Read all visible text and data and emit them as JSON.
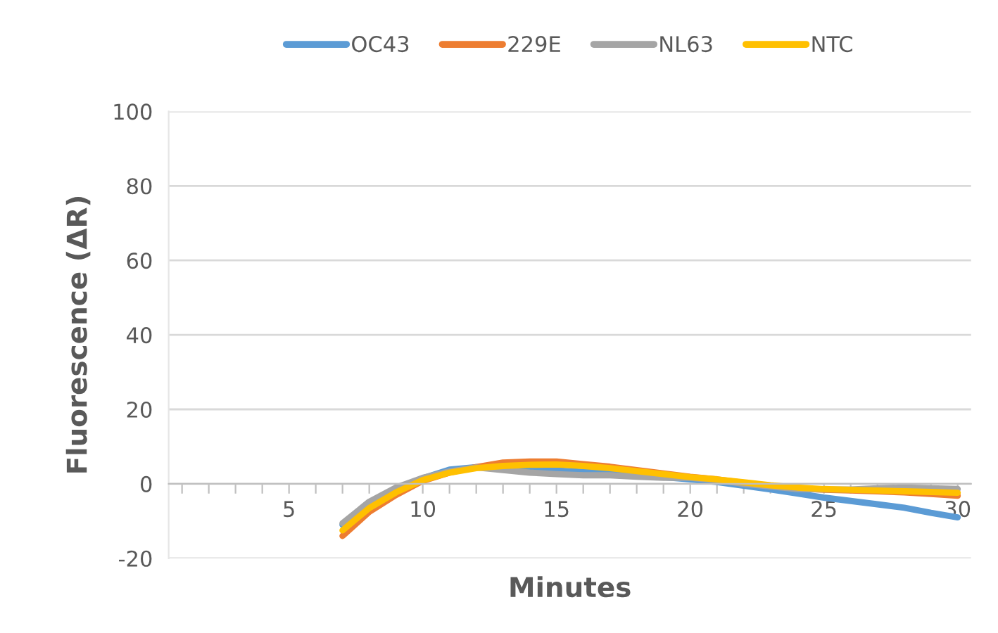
{
  "chart_data": {
    "type": "line",
    "xlabel": "Minutes",
    "ylabel": "Fluorescence (ΔR)",
    "x": [
      7,
      8,
      9,
      10,
      11,
      12,
      13,
      14,
      15,
      16,
      17,
      18,
      19,
      20,
      21,
      22,
      23,
      24,
      25,
      26,
      27,
      28,
      29,
      30
    ],
    "series": [
      {
        "name": "OC43",
        "color": "#5b9bd5",
        "values": [
          -11,
          -5,
          -1.5,
          1.5,
          3.8,
          4.5,
          4.2,
          3.8,
          3.6,
          3.2,
          3,
          2.3,
          1.8,
          1.2,
          0.5,
          -0.5,
          -1.5,
          -2.6,
          -3.7,
          -4.6,
          -5.5,
          -6.4,
          -7.8,
          -9
        ]
      },
      {
        "name": "229E",
        "color": "#ed7d31",
        "values": [
          -14,
          -7.5,
          -3,
          0.8,
          3,
          4.5,
          5.7,
          6,
          6,
          5.3,
          4.6,
          3.7,
          2.8,
          1.9,
          1.2,
          0.3,
          -0.5,
          -1.2,
          -1.6,
          -1.8,
          -2,
          -2.3,
          -2.7,
          -3.2
        ]
      },
      {
        "name": "NL63",
        "color": "#a5a5a5",
        "values": [
          -10.6,
          -4.8,
          -1,
          1.6,
          3.3,
          4.4,
          3.7,
          3,
          2.6,
          2.3,
          2.3,
          1.9,
          1.6,
          1.6,
          1,
          0,
          -0.7,
          -1.4,
          -1.5,
          -1.5,
          -1.2,
          -1,
          -1.2,
          -1.4
        ]
      },
      {
        "name": "NTC",
        "color": "#ffc000",
        "values": [
          -12.5,
          -6.5,
          -2.3,
          1,
          3,
          4.2,
          4.8,
          5.1,
          5.2,
          4.8,
          4.2,
          3.4,
          2.6,
          1.8,
          1.2,
          0.4,
          -0.4,
          -1,
          -1.4,
          -1.6,
          -1.8,
          -2,
          -2.2,
          -2.4
        ]
      }
    ],
    "xlim": [
      0.5,
      30.5
    ],
    "xticks": [
      {
        "value": 1,
        "label": null
      },
      {
        "value": 2,
        "label": null
      },
      {
        "value": 3,
        "label": null
      },
      {
        "value": 4,
        "label": null
      },
      5,
      {
        "value": 6,
        "label": null
      },
      {
        "value": 7,
        "label": null
      },
      {
        "value": 8,
        "label": null
      },
      {
        "value": 9,
        "label": null
      },
      10,
      {
        "value": 11,
        "label": null
      },
      {
        "value": 12,
        "label": null
      },
      {
        "value": 13,
        "label": null
      },
      {
        "value": 14,
        "label": null
      },
      15,
      {
        "value": 16,
        "label": null
      },
      {
        "value": 17,
        "label": null
      },
      {
        "value": 18,
        "label": null
      },
      {
        "value": 19,
        "label": null
      },
      20,
      {
        "value": 21,
        "label": null
      },
      {
        "value": 22,
        "label": null
      },
      {
        "value": 23,
        "label": null
      },
      {
        "value": 24,
        "label": null
      },
      25,
      {
        "value": 26,
        "label": null
      },
      {
        "value": 27,
        "label": null
      },
      {
        "value": 28,
        "label": null
      },
      {
        "value": 29,
        "label": null
      },
      30
    ],
    "ylim": [
      -20,
      100
    ],
    "yticks": [
      -20,
      0,
      20,
      40,
      60,
      80,
      100
    ],
    "grid": "y",
    "legend": "top",
    "marker": "none",
    "line_style": "solid"
  }
}
